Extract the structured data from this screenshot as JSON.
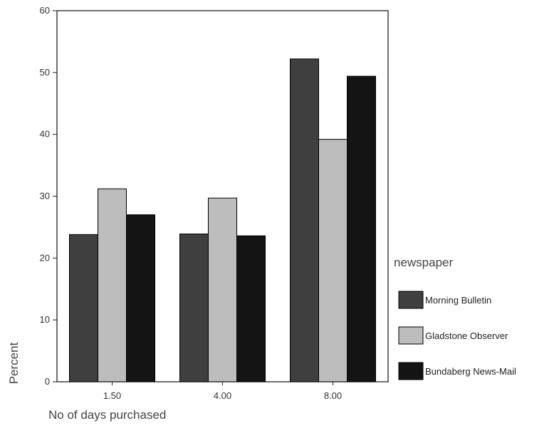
{
  "chart_data": {
    "type": "bar",
    "xlabel": "No of days purchased",
    "ylabel": "Percent",
    "ylim": [
      0,
      60
    ],
    "yticks": [
      "0",
      "10",
      "20",
      "30",
      "40",
      "50",
      "60"
    ],
    "categories": [
      "1.50",
      "4.00",
      "8.00"
    ],
    "legend_title": "newspaper",
    "legend_position": "right",
    "grid": false,
    "series": [
      {
        "name": "Morning Bulletin",
        "color": "#3f3f3f",
        "values": [
          23.8,
          23.9,
          52.2
        ]
      },
      {
        "name": "Gladstone Observer",
        "color": "#bdbdbd",
        "values": [
          31.2,
          29.7,
          39.2
        ]
      },
      {
        "name": "Bundaberg News-Mail",
        "color": "#141414",
        "values": [
          27.0,
          23.6,
          49.4
        ]
      }
    ]
  }
}
